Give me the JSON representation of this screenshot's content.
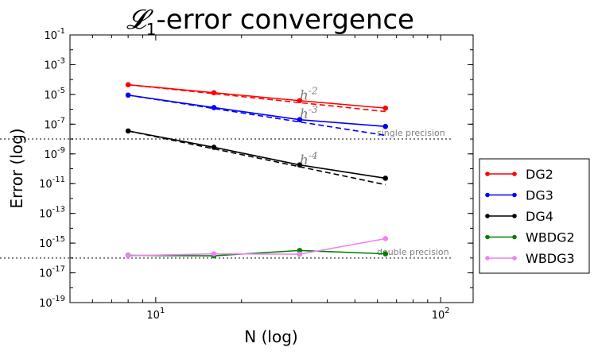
{
  "chart_data": {
    "type": "line",
    "title": "𝓛₁-error convergence",
    "xlabel": "N (log)",
    "ylabel": "Error (log)",
    "xscale": "log",
    "yscale": "log",
    "xlim": [
      5,
      130
    ],
    "ylim": [
      1e-19,
      0.1
    ],
    "grid": false,
    "legend_position": "outside-right",
    "x_ticks": [
      {
        "value": 10,
        "base": "10",
        "exp": "1"
      },
      {
        "value": 100,
        "base": "10",
        "exp": "2"
      }
    ],
    "y_ticks": [
      {
        "value": 0.1,
        "base": "10",
        "exp": "-1"
      },
      {
        "value": 0.001,
        "base": "10",
        "exp": "-3"
      },
      {
        "value": 1e-05,
        "base": "10",
        "exp": "-5"
      },
      {
        "value": 1e-07,
        "base": "10",
        "exp": "-7"
      },
      {
        "value": 1e-09,
        "base": "10",
        "exp": "-9"
      },
      {
        "value": 1e-11,
        "base": "10",
        "exp": "-11"
      },
      {
        "value": 1e-13,
        "base": "10",
        "exp": "-13"
      },
      {
        "value": 1e-15,
        "base": "10",
        "exp": "-15"
      },
      {
        "value": 1e-17,
        "base": "10",
        "exp": "-17"
      },
      {
        "value": 1e-19,
        "base": "10",
        "exp": "-19"
      }
    ],
    "x": [
      8,
      16,
      32,
      64
    ],
    "series": [
      {
        "name": "DG2",
        "color": "#ff0000",
        "values": [
          4.5e-05,
          1.3e-05,
          3.8e-06,
          1.2e-06
        ]
      },
      {
        "name": "DG3",
        "color": "#0000ff",
        "values": [
          9e-06,
          1.3e-06,
          2e-07,
          7e-08
        ]
      },
      {
        "name": "DG4",
        "color": "#000000",
        "values": [
          3.5e-08,
          2.8e-09,
          1.8e-10,
          2.3e-11
        ]
      },
      {
        "name": "WBDG2",
        "color": "#008000",
        "values": [
          1.5e-16,
          1.4e-16,
          3.2e-16,
          1.9e-16
        ]
      },
      {
        "name": "WBDG3",
        "color": "#ee82ee",
        "values": [
          1.4e-16,
          1.9e-16,
          1.8e-16,
          2e-15
        ]
      }
    ],
    "reference_lines": [
      {
        "label_base": "h",
        "label_exp": "-2",
        "color": "#ff0000",
        "values": [
          4.5e-05,
          1.125e-05,
          2.81e-06,
          7.03e-07
        ],
        "label_at": {
          "x": 32,
          "y": 4.5e-06
        }
      },
      {
        "label_base": "h",
        "label_exp": "-3",
        "color": "#0000ff",
        "values": [
          9e-06,
          1.125e-06,
          1.41e-07,
          1.76e-08
        ],
        "label_at": {
          "x": 32,
          "y": 2.5e-07
        }
      },
      {
        "label_base": "h",
        "label_exp": "-4",
        "color": "#000000",
        "values": [
          3.5e-08,
          2.19e-09,
          1.37e-10,
          8.5e-12
        ],
        "label_at": {
          "x": 32,
          "y": 2e-10
        }
      }
    ],
    "horizontal_lines": [
      {
        "label": "single precision",
        "value": 1e-08,
        "color": "#808080"
      },
      {
        "label": "double precision",
        "value": 1e-16,
        "color": "#808080"
      }
    ]
  }
}
